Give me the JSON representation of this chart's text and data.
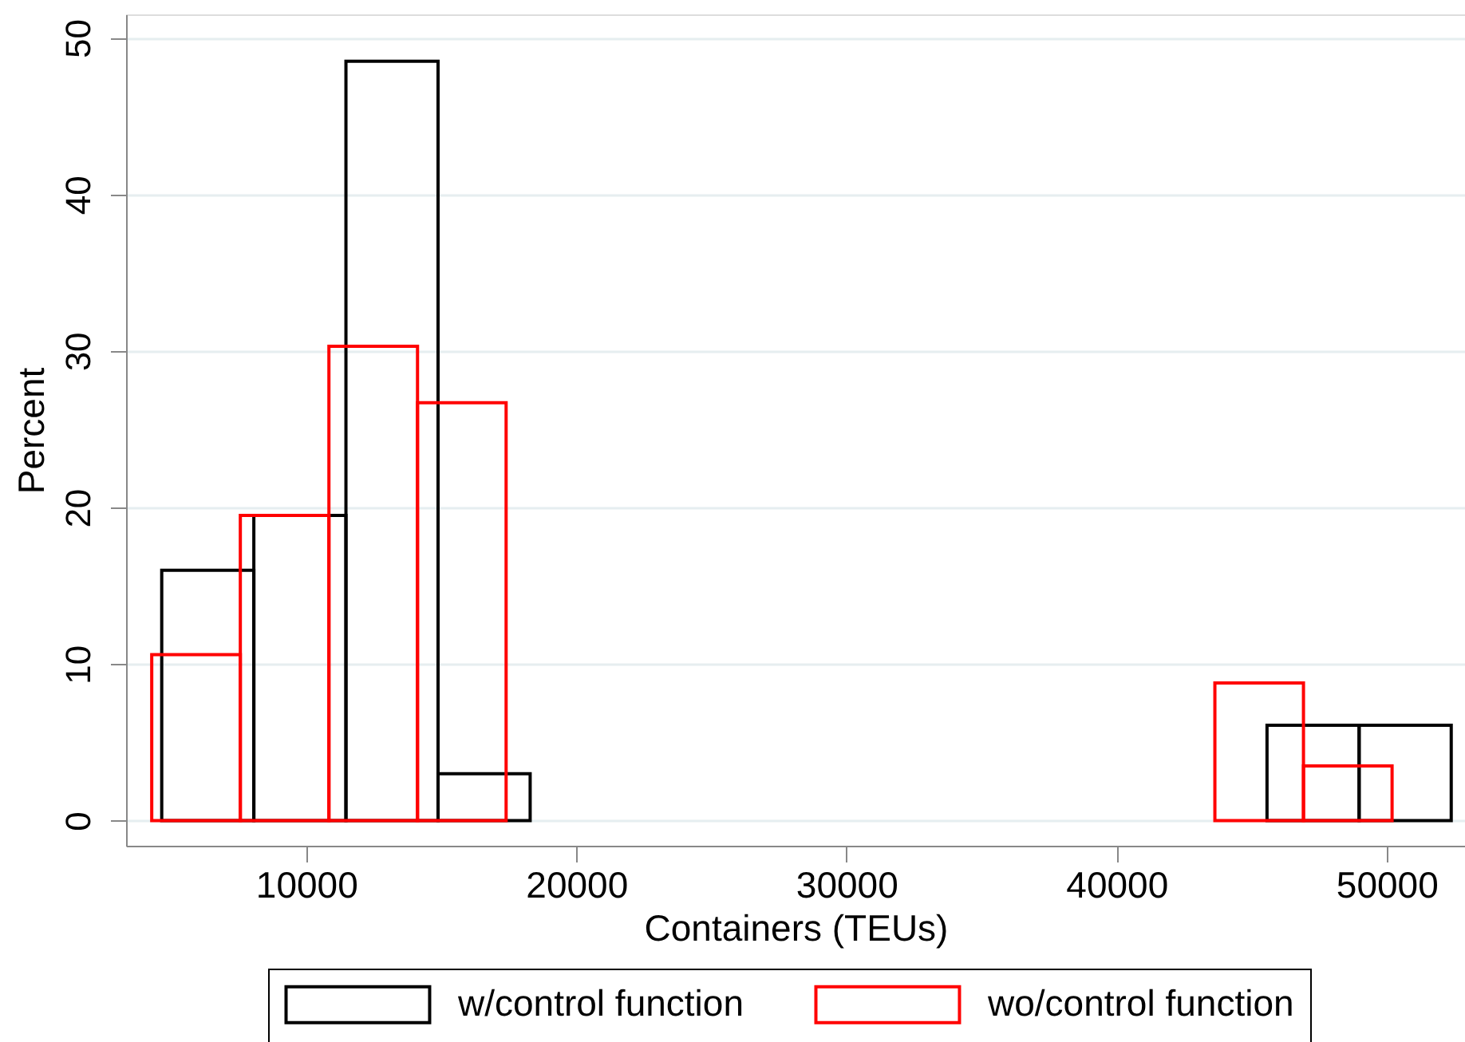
{
  "chart_data": {
    "type": "histogram",
    "xlabel": "Containers (TEUs)",
    "ylabel": "Percent",
    "xlim": [
      3330,
      52900
    ],
    "ylim": [
      -1.6,
      51.5
    ],
    "xticks": [
      10000,
      20000,
      30000,
      40000,
      50000
    ],
    "yticks": [
      0,
      10,
      20,
      30,
      40,
      50
    ],
    "grid": "y",
    "legend": "bottom",
    "bins": [
      4650,
      8060,
      11470,
      14880,
      18290,
      21700,
      25110,
      28520,
      31930,
      35340,
      38750,
      42160,
      45570,
      48980,
      52390
    ],
    "series": [
      {
        "name": "w/control function",
        "color": "#000000",
        "values": [
          16,
          19.5,
          48.5,
          3,
          null,
          null,
          null,
          null,
          null,
          null,
          null,
          null,
          6.1,
          6.1
        ]
      },
      {
        "name": "wo/control function",
        "color": "#ff0000",
        "bins": [
          4280,
          7560,
          10840,
          14120,
          17400,
          20680,
          23960,
          27240,
          30520,
          33800,
          37080,
          40360,
          43640,
          46920,
          50200
        ],
        "values": [
          10.6,
          19.5,
          30.3,
          26.7,
          null,
          null,
          null,
          null,
          null,
          null,
          null,
          null,
          8.8,
          3.5
        ]
      }
    ]
  }
}
